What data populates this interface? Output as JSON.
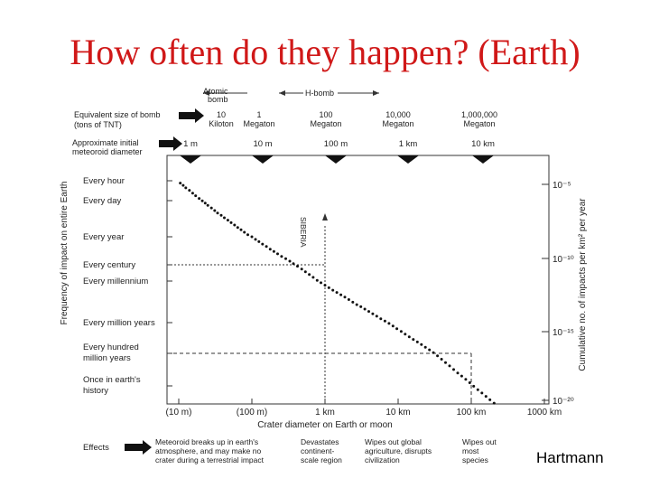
{
  "slide": {
    "title": "How often do they happen? (Earth)",
    "credit": "Hartmann"
  },
  "chart_data": {
    "type": "scatter",
    "xlabel": "Crater diameter on Earth or moon",
    "x_axis_scale": "log",
    "x_ticks": [
      "(10 m)",
      "(100 m)",
      "1 km",
      "10 km",
      "100 km",
      "1000 km"
    ],
    "x_tick_values_m": [
      10,
      100,
      1000,
      10000,
      100000,
      1000000
    ],
    "ylabel_left": "Frequency of impact on entire Earth",
    "y_left_ticks": [
      "Every hour",
      "Every day",
      "Every year",
      "Every century",
      "Every millennium",
      "Every million years",
      "Every hundred million years",
      "Once in earth's history"
    ],
    "y_left_values_per_year": [
      8766,
      365,
      1,
      0.01,
      0.001,
      1e-06,
      1e-08,
      2.2e-10
    ],
    "ylabel_right": "Cumulative no. of impacts per km² per year",
    "y_right_ticks": [
      "10⁻⁵",
      "10⁻¹⁰",
      "10⁻¹⁵",
      "10⁻²⁰"
    ],
    "y_right_values": [
      1e-05,
      1e-10,
      1e-15,
      1e-20
    ],
    "top_axis_bomb": {
      "header_left": "Atomic bomb",
      "header_right": "H-bomb",
      "label": "Equivalent size of bomb (tons of TNT)",
      "ticks": [
        "10 Kiloton",
        "1 Megaton",
        "100 Megaton",
        "10,000 Megaton",
        "1,000,000 Megaton"
      ]
    },
    "top_axis_meteoroid": {
      "label": "Approximate initial meteoroid diameter",
      "ticks": [
        "1 m",
        "10 m",
        "100 m",
        "1 km",
        "10 km"
      ]
    },
    "annotations": [
      {
        "text": "SIBERIA",
        "crater_m": 1000,
        "per_year": 0.01
      },
      {
        "text": "",
        "crater_m": 100000,
        "per_year": 1e-08
      }
    ],
    "effects_label": "Effects",
    "effects": [
      "Meteoroid breaks up in earth's atmosphere, and may make no crater during a terrestrial impact",
      "Devastates continent-scale region",
      "Wipes out global agriculture, disrupts civilization",
      "Wipes out most species"
    ],
    "series": [
      {
        "points": [
          [
            8,
            26000
          ],
          [
            8.8,
            15000
          ],
          [
            9.5,
            9000
          ],
          [
            10.5,
            6000
          ],
          [
            11.5,
            4200
          ],
          [
            12.5,
            2800
          ],
          [
            14,
            1900
          ],
          [
            15.5,
            1200
          ],
          [
            17,
            800
          ],
          [
            19,
            520
          ],
          [
            21,
            350
          ],
          [
            23,
            240
          ],
          [
            25,
            170
          ],
          [
            28,
            110
          ],
          [
            31,
            72
          ],
          [
            34,
            48
          ],
          [
            38,
            33
          ],
          [
            42,
            22
          ],
          [
            47,
            15
          ],
          [
            52,
            10
          ],
          [
            58,
            6.8
          ],
          [
            64,
            4.6
          ],
          [
            71,
            3.1
          ],
          [
            79,
            2.1
          ],
          [
            88,
            1.4
          ],
          [
            100,
            1.0
          ],
          [
            112,
            0.65
          ],
          [
            125,
            0.45
          ],
          [
            140,
            0.3
          ],
          [
            158,
            0.2
          ],
          [
            178,
            0.13
          ],
          [
            200,
            0.09
          ],
          [
            225,
            0.06
          ],
          [
            255,
            0.04
          ],
          [
            290,
            0.027
          ],
          [
            330,
            0.018
          ],
          [
            370,
            0.012
          ],
          [
            420,
            0.0082
          ],
          [
            480,
            0.0055
          ],
          [
            540,
            0.0037
          ],
          [
            610,
            0.0025
          ],
          [
            690,
            0.0017
          ],
          [
            780,
            0.0011
          ],
          [
            880,
            0.00075
          ],
          [
            1000,
            0.0005
          ],
          [
            1130,
            0.00033
          ],
          [
            1280,
            0.00022
          ],
          [
            1450,
            0.00015
          ],
          [
            1650,
            0.0001
          ],
          [
            1870,
            7e-05
          ],
          [
            2120,
            4.6e-05
          ],
          [
            2400,
            3e-05
          ],
          [
            2720,
            2e-05
          ],
          [
            3090,
            1.4e-05
          ],
          [
            3500,
            9.5e-06
          ],
          [
            3970,
            6.4e-06
          ],
          [
            4500,
            4.3e-06
          ],
          [
            5100,
            2.9e-06
          ],
          [
            5800,
            1.9e-06
          ],
          [
            6600,
            1.3e-06
          ],
          [
            7500,
            8.8e-07
          ],
          [
            8500,
            6e-07
          ],
          [
            9600,
            4e-07
          ],
          [
            11000,
            2.7e-07
          ],
          [
            12500,
            1.8e-07
          ],
          [
            14200,
            1.2e-07
          ],
          [
            16100,
            8e-08
          ],
          [
            18300,
            5.5e-08
          ],
          [
            20800,
            3.7e-08
          ],
          [
            23600,
            2.5e-08
          ],
          [
            26800,
            1.7e-08
          ],
          [
            30400,
            1.1e-08
          ],
          [
            34500,
            7.5e-09
          ],
          [
            39200,
            5e-09
          ],
          [
            44500,
            3.4e-09
          ],
          [
            50500,
            2.3e-09
          ],
          [
            57400,
            1.5e-09
          ],
          [
            65200,
            1e-09
          ],
          [
            74000,
            7e-10
          ],
          [
            84000,
            4.7e-10
          ],
          [
            95400,
            3.2e-10
          ],
          [
            108000,
            2.1e-10
          ],
          [
            123000,
            1.4e-10
          ],
          [
            140000,
            9.5e-11
          ],
          [
            159000,
            6.4e-11
          ],
          [
            180000,
            4.3e-11
          ],
          [
            205000,
            2.9e-11
          ],
          [
            233000,
            2e-11
          ],
          [
            265000,
            1.3e-11
          ],
          [
            300000,
            8.9e-12
          ],
          [
            341000,
            6e-12
          ],
          [
            387000,
            4e-12
          ],
          [
            440000,
            2.7e-12
          ],
          [
            500000,
            1.8e-12
          ],
          [
            568000,
            1.2e-12
          ],
          [
            645000,
            8.2e-13
          ]
        ]
      }
    ]
  }
}
